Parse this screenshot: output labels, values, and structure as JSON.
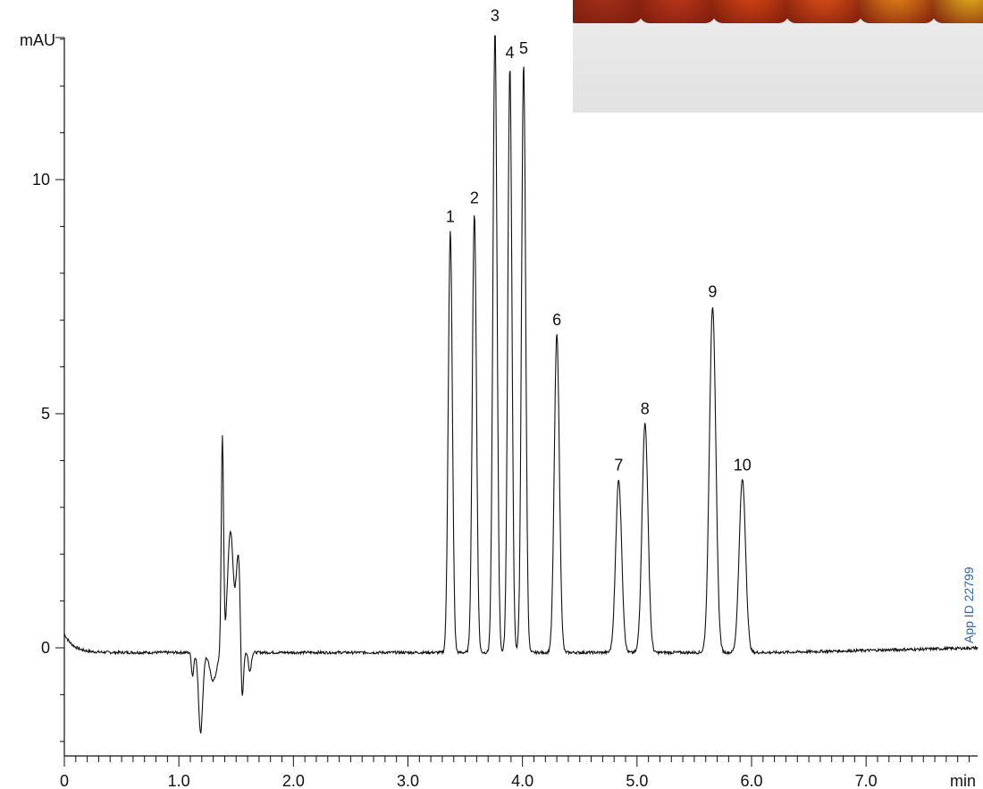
{
  "chart_data": {
    "type": "line",
    "ylabel": "mAU",
    "xlabel": "min",
    "xlim": [
      0,
      8.0
    ],
    "ylim": [
      -2.1,
      13.2
    ],
    "x_ticks": [
      {
        "value": 0,
        "label": "0"
      },
      {
        "value": 1.0,
        "label": "1.0"
      },
      {
        "value": 2.0,
        "label": "2.0"
      },
      {
        "value": 3.0,
        "label": "3.0"
      },
      {
        "value": 4.0,
        "label": "4.0"
      },
      {
        "value": 5.0,
        "label": "5.0"
      },
      {
        "value": 6.0,
        "label": "6.0"
      },
      {
        "value": 7.0,
        "label": "7.0"
      }
    ],
    "x_minor_step": 0.1,
    "y_ticks": [
      {
        "value": 0,
        "label": "0"
      },
      {
        "value": 5,
        "label": "5"
      },
      {
        "value": 10,
        "label": "10"
      }
    ],
    "y_minor_step": 1,
    "baseline": {
      "start": 0.3,
      "level": -0.1
    },
    "peaks": [
      {
        "label": "1",
        "x": 3.37,
        "y": 8.9,
        "width": 0.018
      },
      {
        "label": "2",
        "x": 3.58,
        "y": 9.3,
        "width": 0.018
      },
      {
        "label": "3",
        "x": 3.76,
        "y": 13.2,
        "width": 0.018
      },
      {
        "label": "4",
        "x": 3.89,
        "y": 12.4,
        "width": 0.018
      },
      {
        "label": "5",
        "x": 4.01,
        "y": 12.5,
        "width": 0.018
      },
      {
        "label": "6",
        "x": 4.3,
        "y": 6.7,
        "width": 0.022
      },
      {
        "label": "7",
        "x": 4.84,
        "y": 3.6,
        "width": 0.026
      },
      {
        "label": "8",
        "x": 5.07,
        "y": 4.8,
        "width": 0.026
      },
      {
        "label": "9",
        "x": 5.66,
        "y": 7.3,
        "width": 0.028
      },
      {
        "label": "10",
        "x": 5.92,
        "y": 3.6,
        "width": 0.028
      }
    ],
    "void_features": [
      {
        "x": 1.12,
        "y": -0.6,
        "width": 0.01
      },
      {
        "x": 1.19,
        "y": -1.8,
        "width": 0.018
      },
      {
        "x": 1.3,
        "y": -0.7,
        "width": 0.03
      },
      {
        "x": 1.38,
        "y": 4.5,
        "width": 0.01
      },
      {
        "x": 1.45,
        "y": 2.5,
        "width": 0.025
      },
      {
        "x": 1.52,
        "y": 2.0,
        "width": 0.02
      },
      {
        "x": 1.55,
        "y": -1.6,
        "width": 0.012
      },
      {
        "x": 1.62,
        "y": -0.5,
        "width": 0.012
      }
    ],
    "line_color": "#111111"
  },
  "inset_photo": {
    "jar_colors": [
      "#a8321c",
      "#c43a1e",
      "#e04a16",
      "#e8561a",
      "#f08f1a",
      "#f2c21e"
    ]
  },
  "watermark": {
    "text": "App ID 22799",
    "color": "#2f66a8"
  }
}
